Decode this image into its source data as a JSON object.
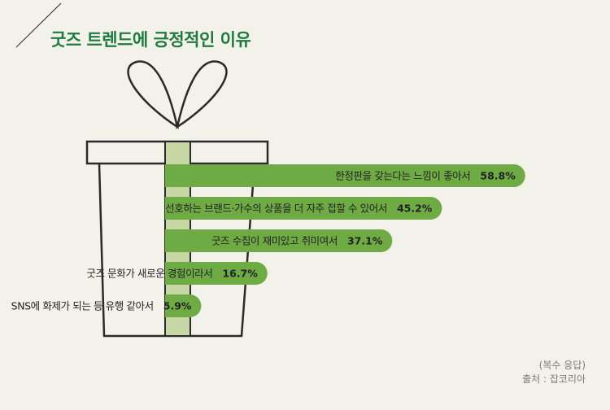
{
  "title": "굿즈 트렌드에 긍정적인 이유",
  "note": "(복수 응답)",
  "source": "출처 : 잡코리아",
  "colors": {
    "background": "#f2f1ea",
    "title": "#1f7a3e",
    "bar": "#6fab45",
    "ribbon": "#c7d8a6",
    "outline": "#2a2a2a"
  },
  "chart_data": {
    "type": "bar",
    "orientation": "horizontal",
    "unit": "%",
    "categories": [
      "한정판을 갖는다는 느낌이 좋아서",
      "선호하는 브랜드·가수의 상품을 더 자주 접할 수 있어서",
      "굿즈 수집이 재미있고 취미여서",
      "굿즈 문화가 새로운 경험이라서",
      "SNS에 화제가 되는 등 유행 같아서"
    ],
    "values": [
      58.8,
      45.2,
      37.1,
      16.7,
      5.9
    ],
    "value_labels": [
      "58.8%",
      "45.2%",
      "37.1%",
      "16.7%",
      "5.9%"
    ]
  }
}
